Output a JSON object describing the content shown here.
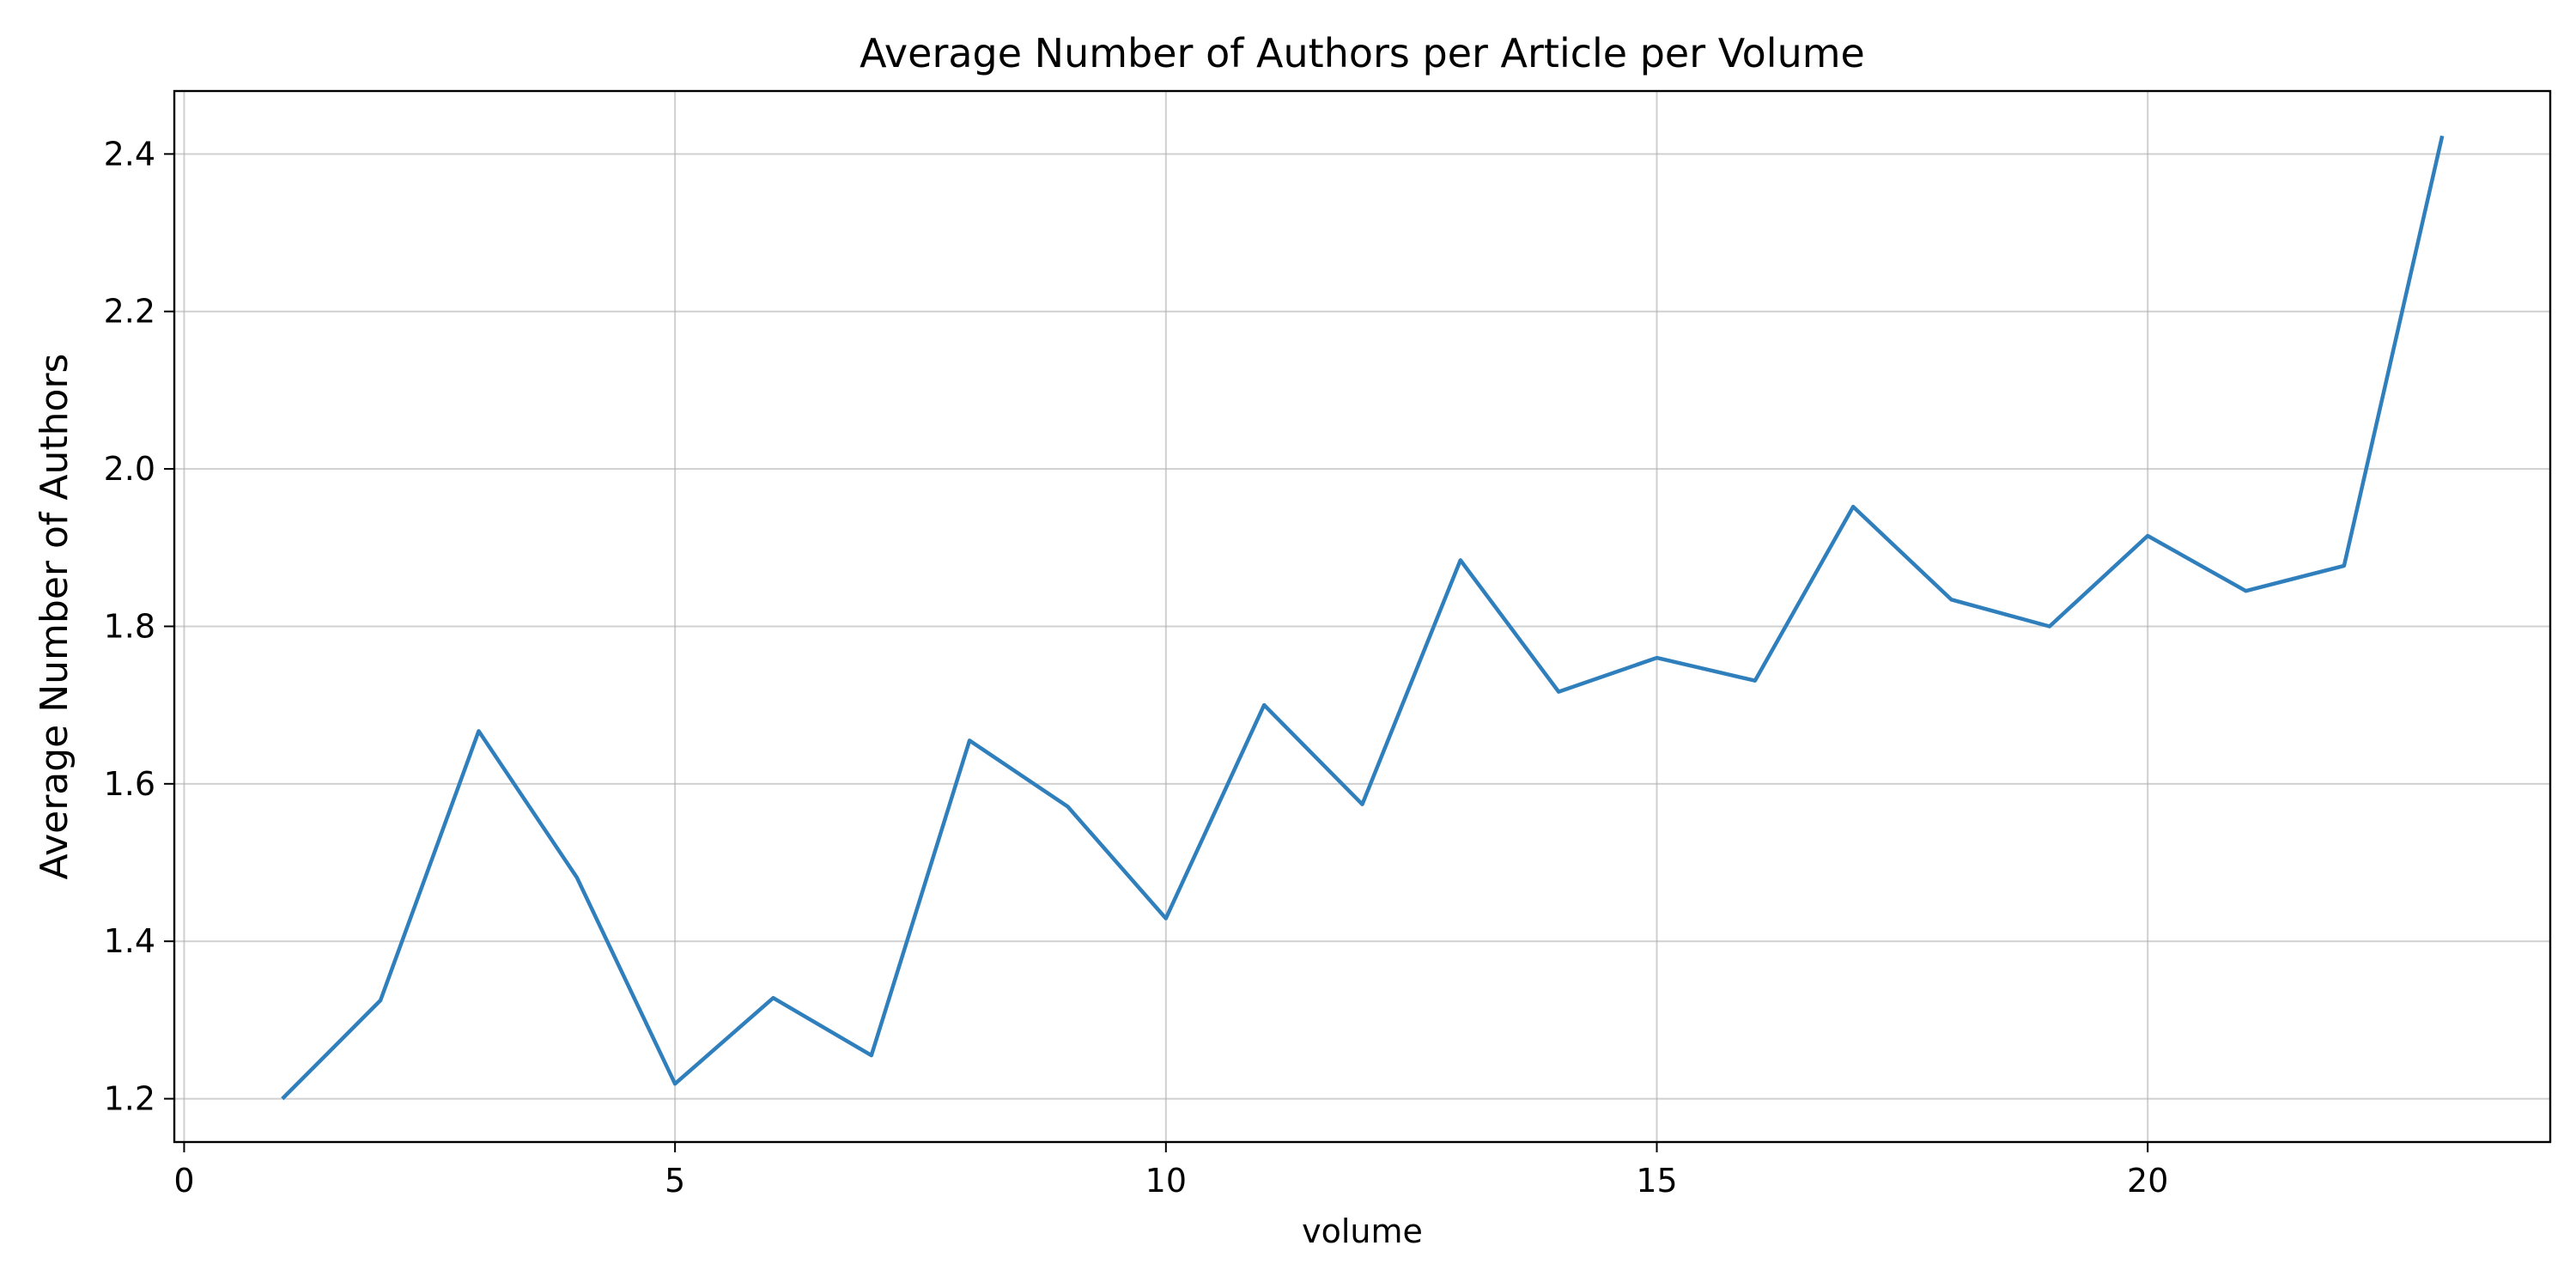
{
  "chart_data": {
    "type": "line",
    "title": "Average Number of Authors per Article per Volume",
    "xlabel": "volume",
    "ylabel": "Average Number of Authors",
    "xlim": [
      -0.1,
      24.1
    ],
    "ylim": [
      1.145,
      2.48
    ],
    "x_ticks": [
      0,
      5,
      10,
      15,
      20
    ],
    "y_ticks": [
      1.2,
      1.4,
      1.6,
      1.8,
      2.0,
      2.2,
      2.4
    ],
    "y_tick_labels": [
      "1.2",
      "1.4",
      "1.6",
      "1.8",
      "2.0",
      "2.2",
      "2.4"
    ],
    "grid": true,
    "series": [
      {
        "color": "#2f7fbd",
        "x": [
          1,
          2,
          3,
          4,
          5,
          6,
          7,
          8,
          9,
          10,
          11,
          12,
          13,
          14,
          15,
          16,
          17,
          18,
          19,
          20,
          21,
          22,
          23
        ],
        "y": [
          1.2,
          1.325,
          1.667,
          1.481,
          1.219,
          1.328,
          1.255,
          1.655,
          1.571,
          1.429,
          1.7,
          1.574,
          1.884,
          1.717,
          1.76,
          1.731,
          1.952,
          1.834,
          1.8,
          1.915,
          1.845,
          1.877,
          2.423
        ]
      }
    ]
  }
}
